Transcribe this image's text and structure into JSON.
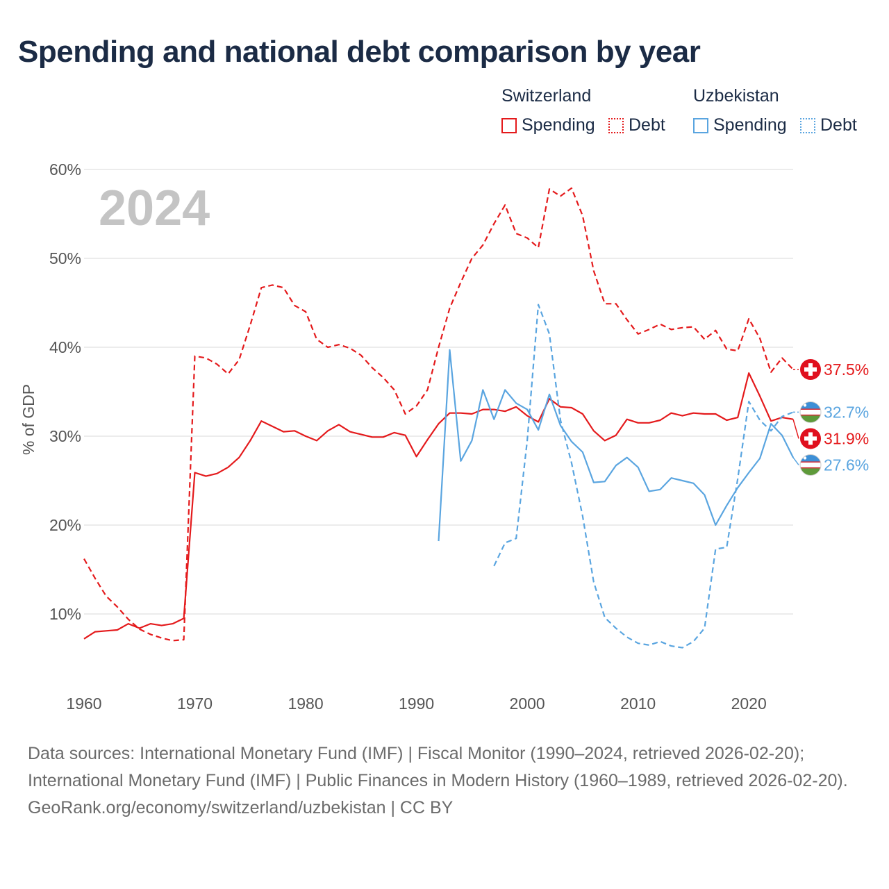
{
  "title": "Spending and national debt comparison by year",
  "legend": {
    "groups": [
      {
        "country": "Switzerland",
        "color": "#e41a1c",
        "items": [
          {
            "label": "Spending",
            "style": "solid"
          },
          {
            "label": "Debt",
            "style": "dotted"
          }
        ]
      },
      {
        "country": "Uzbekistan",
        "color": "#5aa5e0",
        "items": [
          {
            "label": "Spending",
            "style": "solid"
          },
          {
            "label": "Debt",
            "style": "dotted"
          }
        ]
      }
    ]
  },
  "chart_data": {
    "type": "line",
    "year_label": "2024",
    "ylabel": "% of GDP",
    "xlabel": "",
    "xlim": [
      1960,
      2024
    ],
    "ylim": [
      2,
      62
    ],
    "y_ticks": [
      10,
      20,
      30,
      40,
      50,
      60
    ],
    "y_tick_labels": [
      "10%",
      "20%",
      "30%",
      "40%",
      "50%",
      "60%"
    ],
    "x_ticks": [
      1960,
      1970,
      1980,
      1990,
      2000,
      2010,
      2020
    ],
    "x_tick_labels": [
      "1960",
      "1970",
      "1980",
      "1990",
      "2000",
      "2010",
      "2020"
    ],
    "grid": true,
    "series": [
      {
        "name": "Switzerland Debt",
        "country": "Switzerland",
        "metric": "Debt",
        "color": "#e41a1c",
        "dash": "dashed",
        "x": [
          1960,
          1961,
          1962,
          1963,
          1964,
          1965,
          1966,
          1967,
          1968,
          1969,
          1970,
          1971,
          1972,
          1973,
          1974,
          1975,
          1976,
          1977,
          1978,
          1979,
          1980,
          1981,
          1982,
          1983,
          1984,
          1985,
          1986,
          1987,
          1988,
          1989,
          1990,
          1991,
          1992,
          1993,
          1994,
          1995,
          1996,
          1997,
          1998,
          1999,
          2000,
          2001,
          2002,
          2003,
          2004,
          2005,
          2006,
          2007,
          2008,
          2009,
          2010,
          2011,
          2012,
          2013,
          2014,
          2015,
          2016,
          2017,
          2018,
          2019,
          2020,
          2021,
          2022,
          2023,
          2024
        ],
        "values": [
          16.2,
          14.0,
          12.0,
          10.8,
          9.4,
          8.3,
          7.7,
          7.3,
          7.0,
          7.1,
          39.0,
          38.8,
          38.1,
          37.0,
          38.6,
          42.5,
          46.7,
          47.0,
          46.7,
          44.7,
          44.0,
          40.9,
          40.0,
          40.3,
          39.9,
          39.1,
          37.7,
          36.6,
          35.2,
          32.5,
          33.4,
          35.2,
          40.0,
          44.4,
          47.3,
          50.0,
          51.5,
          53.9,
          56.0,
          52.8,
          52.3,
          51.2,
          57.8,
          57.0,
          57.9,
          54.8,
          48.6,
          44.9,
          44.9,
          43.1,
          41.5,
          42.0,
          42.6,
          42.0,
          42.2,
          42.3,
          40.9,
          41.9,
          39.8,
          39.6,
          43.2,
          41.0,
          37.2,
          38.8,
          37.5
        ],
        "end_label": "37.5%"
      },
      {
        "name": "Switzerland Spending",
        "country": "Switzerland",
        "metric": "Spending",
        "color": "#e41a1c",
        "dash": "solid",
        "x": [
          1960,
          1961,
          1962,
          1963,
          1964,
          1965,
          1966,
          1967,
          1968,
          1969,
          1970,
          1971,
          1972,
          1973,
          1974,
          1975,
          1976,
          1977,
          1978,
          1979,
          1980,
          1981,
          1982,
          1983,
          1984,
          1985,
          1986,
          1987,
          1988,
          1989,
          1990,
          1991,
          1992,
          1993,
          1994,
          1995,
          1996,
          1997,
          1998,
          1999,
          2000,
          2001,
          2002,
          2003,
          2004,
          2005,
          2006,
          2007,
          2008,
          2009,
          2010,
          2011,
          2012,
          2013,
          2014,
          2015,
          2016,
          2017,
          2018,
          2019,
          2020,
          2021,
          2022,
          2023,
          2024
        ],
        "values": [
          7.2,
          8.0,
          8.1,
          8.2,
          8.9,
          8.4,
          8.9,
          8.7,
          8.9,
          9.5,
          25.9,
          25.5,
          25.8,
          26.5,
          27.6,
          29.5,
          31.7,
          31.1,
          30.5,
          30.6,
          30.0,
          29.5,
          30.6,
          31.3,
          30.5,
          30.2,
          29.9,
          29.9,
          30.4,
          30.1,
          27.7,
          29.6,
          31.4,
          32.6,
          32.6,
          32.5,
          33.0,
          33.0,
          32.8,
          33.3,
          32.3,
          31.6,
          34.2,
          33.3,
          33.2,
          32.5,
          30.6,
          29.5,
          30.1,
          31.9,
          31.5,
          31.5,
          31.8,
          32.6,
          32.3,
          32.6,
          32.5,
          32.5,
          31.8,
          32.1,
          37.1,
          34.5,
          31.7,
          32.1,
          31.9
        ],
        "end_label": "31.9%"
      },
      {
        "name": "Uzbekistan Debt",
        "country": "Uzbekistan",
        "metric": "Debt",
        "color": "#5aa5e0",
        "dash": "dashed",
        "x": [
          1997,
          1998,
          1999,
          2000,
          2001,
          2002,
          2003,
          2004,
          2005,
          2006,
          2007,
          2008,
          2009,
          2010,
          2011,
          2012,
          2013,
          2014,
          2015,
          2016,
          2017,
          2018,
          2019,
          2020,
          2021,
          2022,
          2023,
          2024
        ],
        "values": [
          15.4,
          18.0,
          18.5,
          29.5,
          44.8,
          41.5,
          31.8,
          27.0,
          21.0,
          13.6,
          9.6,
          8.4,
          7.4,
          6.7,
          6.5,
          6.9,
          6.4,
          6.2,
          6.9,
          8.4,
          17.3,
          17.5,
          25.2,
          33.9,
          31.8,
          30.6,
          32.2,
          32.7
        ],
        "end_label": "32.7%"
      },
      {
        "name": "Uzbekistan Spending",
        "country": "Uzbekistan",
        "metric": "Spending",
        "color": "#5aa5e0",
        "dash": "solid",
        "x": [
          1992,
          1993,
          1994,
          1995,
          1996,
          1997,
          1998,
          1999,
          2000,
          2001,
          2002,
          2003,
          2004,
          2005,
          2006,
          2007,
          2008,
          2009,
          2010,
          2011,
          2012,
          2013,
          2014,
          2015,
          2016,
          2017,
          2018,
          2019,
          2020,
          2021,
          2022,
          2023,
          2024
        ],
        "values": [
          18.2,
          39.7,
          27.2,
          29.5,
          35.2,
          31.9,
          35.2,
          33.7,
          33.0,
          30.7,
          34.7,
          31.2,
          29.4,
          28.2,
          24.8,
          24.9,
          26.7,
          27.6,
          26.5,
          23.8,
          24.0,
          25.3,
          25.0,
          24.7,
          23.4,
          20.0,
          22.2,
          24.2,
          25.9,
          27.5,
          31.4,
          30.1,
          27.6
        ],
        "end_label": "27.6%"
      }
    ]
  },
  "footer": {
    "sources": "Data sources: International Monetary Fund (IMF) | Fiscal Monitor (1990–2024, retrieved 2026-02-20); International Monetary Fund (IMF) | Public Finances in Modern History (1960–1989, retrieved 2026-02-20).",
    "credit": "GeoRank.org/economy/switzerland/uzbekistan | CC BY"
  }
}
